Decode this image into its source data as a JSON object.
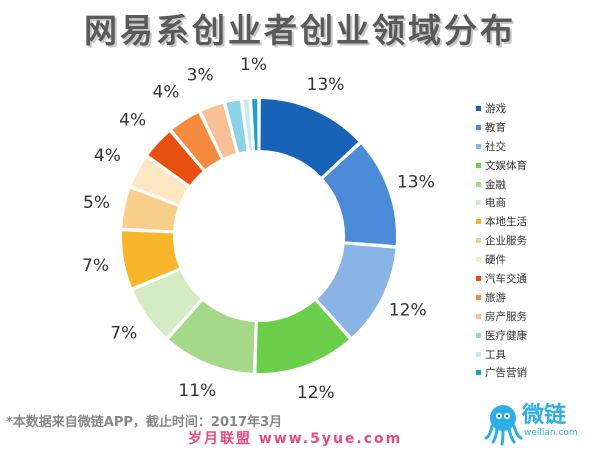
{
  "title": "网易系创业者创业领域分布",
  "chart_data": {
    "type": "pie",
    "donut": true,
    "legend_position": "right",
    "series": [
      {
        "name": "游戏",
        "value": 13,
        "label": "13%",
        "color": "#1763b8"
      },
      {
        "name": "教育",
        "value": 13,
        "label": "13%",
        "color": "#4c8bd8"
      },
      {
        "name": "社交",
        "value": 12,
        "label": "12%",
        "color": "#8ab4e6"
      },
      {
        "name": "文娱体育",
        "value": 12,
        "label": "12%",
        "color": "#6ccf4a"
      },
      {
        "name": "金融",
        "value": 11,
        "label": "11%",
        "color": "#a6d88a"
      },
      {
        "name": "电商",
        "value": 7,
        "label": "7%",
        "color": "#d4ebc4"
      },
      {
        "name": "本地生活",
        "value": 7,
        "label": "7%",
        "color": "#f7b52c"
      },
      {
        "name": "企业服务",
        "value": 5,
        "label": "5%",
        "color": "#f8cf8a"
      },
      {
        "name": "硬件",
        "value": 4,
        "label": "4%",
        "color": "#fde6c2"
      },
      {
        "name": "汽车交通",
        "value": 4,
        "label": "4%",
        "color": "#e8500f"
      },
      {
        "name": "旅游",
        "value": 4,
        "label": "4%",
        "color": "#f58b3e"
      },
      {
        "name": "房产服务",
        "value": 3,
        "label": "3%",
        "color": "#f9c095"
      },
      {
        "name": "医疗健康",
        "value": 2,
        "label": "",
        "color": "#8dd3e6"
      },
      {
        "name": "工具",
        "value": 1,
        "label": "",
        "color": "#c6e9f4"
      },
      {
        "name": "广告营销",
        "value": 1,
        "label": "1%",
        "color": "#1ba0c8"
      }
    ]
  },
  "footnote": "*本数据来自微链APP，截止时间：2017年3月",
  "watermark": "岁月联盟 www.5yue.com",
  "logo": {
    "name": "微链",
    "subtitle": "weilian.com",
    "icon": "octopus-logo-icon"
  }
}
